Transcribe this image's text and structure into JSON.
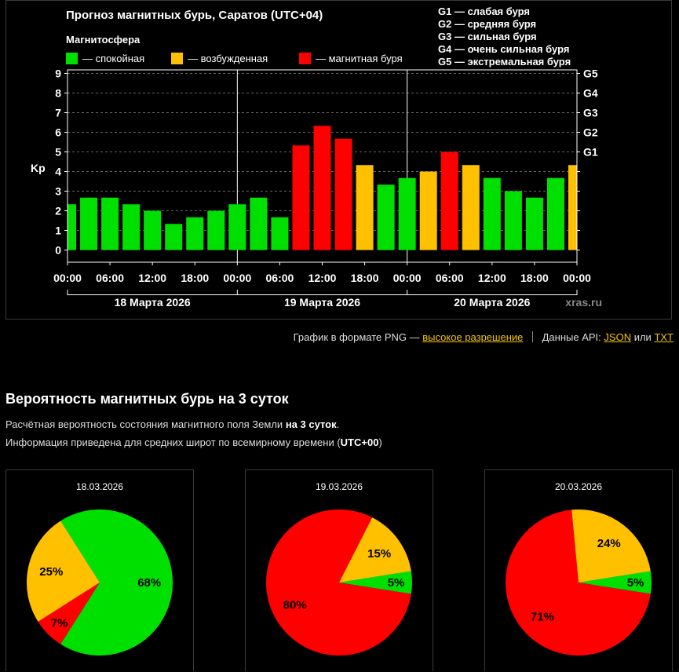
{
  "chart": {
    "title": "Прогноз магнитных бурь, Саратов (UTC+04)",
    "legend_title": "Магнитосфера",
    "legend": [
      {
        "label": "— спокойная",
        "color": "#00e000"
      },
      {
        "label": "— возбужденная",
        "color": "#ffc000"
      },
      {
        "label": "— магнитная буря",
        "color": "#ff0000"
      }
    ],
    "g_scale_legend": [
      "G1 — слабая буря",
      "G2 — средняя буря",
      "G3 — сильная буря",
      "G4 — очень сильная буря",
      "G5 — экстремальная буря"
    ],
    "watermark": "xras.ru"
  },
  "chart_data": {
    "type": "bar",
    "ylabel": "Kp",
    "ylim": [
      0,
      9
    ],
    "yticks": [
      "0",
      "1",
      "2",
      "3",
      "4",
      "5",
      "6",
      "7",
      "8",
      "9"
    ],
    "g_ticks": [
      {
        "label": "G1",
        "kp": 5
      },
      {
        "label": "G2",
        "kp": 6
      },
      {
        "label": "G3",
        "kp": 7
      },
      {
        "label": "G4",
        "kp": 8
      },
      {
        "label": "G5",
        "kp": 9
      }
    ],
    "xtick_labels": [
      "00:00",
      "06:00",
      "12:00",
      "18:00",
      "00:00",
      "06:00",
      "12:00",
      "18:00",
      "00:00",
      "06:00",
      "12:00",
      "18:00",
      "00:00"
    ],
    "days": [
      "18 Марта 2026",
      "19 Марта 2026",
      "20 Марта 2026"
    ],
    "grid": true,
    "values": [
      2.33,
      2.67,
      2.67,
      2.33,
      2.0,
      1.33,
      1.67,
      2.0,
      2.33,
      2.67,
      1.67,
      5.33,
      6.33,
      5.67,
      4.33,
      3.33,
      3.67,
      4.0,
      5.0,
      4.33,
      3.67,
      3.0,
      2.67,
      3.67,
      4.33
    ],
    "levels": [
      "q",
      "q",
      "q",
      "q",
      "q",
      "q",
      "q",
      "q",
      "q",
      "q",
      "q",
      "s",
      "s",
      "s",
      "a",
      "q",
      "q",
      "a",
      "s",
      "a",
      "q",
      "q",
      "q",
      "q",
      "a"
    ]
  },
  "links": {
    "png_text": "График в формате PNG —",
    "png_link": "высокое разрешение",
    "api_text": "Данные API:",
    "json_link": "JSON",
    "or_text": "или",
    "txt_link": "TXT"
  },
  "probability": {
    "title": "Вероятность магнитных бурь на 3 суток",
    "desc1_a": "Расчётная вероятность состояния магнитного поля Земли",
    "desc1_b": "на 3 суток",
    "desc1_c": ".",
    "desc2_a": "Информация приведена для средних широт по всемирному времени (",
    "desc2_b": "UTC+00",
    "desc2_c": ")",
    "pies": [
      {
        "date": "18.03.2026",
        "quiet": 68,
        "active": 25,
        "storm": 7
      },
      {
        "date": "19.03.2026",
        "quiet": 5,
        "active": 15,
        "storm": 80
      },
      {
        "date": "20.03.2026",
        "quiet": 5,
        "active": 24,
        "storm": 71
      }
    ]
  }
}
